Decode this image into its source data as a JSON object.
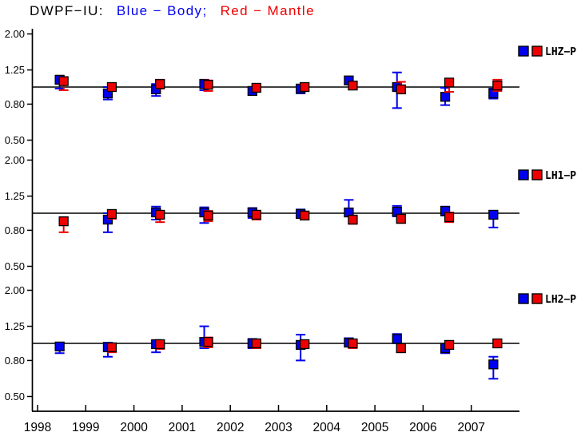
{
  "title": {
    "station": "DWPF−IU:",
    "blue_label": "Blue − Body;",
    "red_label": "Red − Mantle"
  },
  "colors": {
    "blue": "#0000ee",
    "red": "#ee0000",
    "axis": "#000000",
    "background": "#ffffff"
  },
  "x_axis": {
    "ticks": [
      "1998",
      "1999",
      "2000",
      "2001",
      "2002",
      "2003",
      "2004",
      "2005",
      "2006",
      "2007"
    ]
  },
  "chart_data": [
    {
      "type": "scatter",
      "legend": "LHZ−P",
      "yscale": "log",
      "ylim": [
        0.42,
        2.3
      ],
      "ref_line": 1.0,
      "grid": false,
      "legend_position": "right-top",
      "yticks": [
        {
          "v": 2.0,
          "label": "2.00"
        },
        {
          "v": 1.25,
          "label": "1.25"
        },
        {
          "v": 0.8,
          "label": "0.80"
        },
        {
          "v": 0.5,
          "label": "0.50"
        }
      ],
      "x": [
        1998.5,
        1999.5,
        2000.5,
        2001.5,
        2002.5,
        2003.5,
        2004.5,
        2005.5,
        2006.5,
        2007.5
      ],
      "series": [
        {
          "name": "Body",
          "color": "blue",
          "values": [
            1.1,
            0.92,
            0.97,
            1.04,
            0.95,
            0.98,
            1.09,
            1.0,
            0.88,
            0.92
          ],
          "err_lo": [
            0.98,
            0.85,
            0.89,
            0.96,
            0.91,
            0.92,
            1.04,
            0.76,
            0.79,
            0.86
          ],
          "err_hi": [
            1.12,
            1.0,
            1.04,
            1.1,
            0.99,
            1.03,
            1.14,
            1.21,
            0.99,
            0.98
          ]
        },
        {
          "name": "Mantle",
          "color": "red",
          "values": [
            1.08,
            1.0,
            1.04,
            1.03,
            0.99,
            1.0,
            1.02,
            0.97,
            1.06,
            1.02
          ],
          "err_lo": [
            0.96,
            0.95,
            0.98,
            0.95,
            0.95,
            0.95,
            0.97,
            0.93,
            0.94,
            0.95
          ],
          "err_hi": [
            1.11,
            1.05,
            1.1,
            1.09,
            1.03,
            1.05,
            1.06,
            1.07,
            1.11,
            1.1
          ]
        }
      ]
    },
    {
      "type": "scatter",
      "legend": "LH1−P",
      "yscale": "log",
      "ylim": [
        0.42,
        2.3
      ],
      "ref_line": 1.0,
      "grid": false,
      "legend_position": "right-top",
      "yticks": [
        {
          "v": 2.0,
          "label": "2.00"
        },
        {
          "v": 1.25,
          "label": "1.25"
        },
        {
          "v": 0.8,
          "label": "0.80"
        },
        {
          "v": 0.5,
          "label": "0.50"
        }
      ],
      "x": [
        1998.5,
        1999.5,
        2000.5,
        2001.5,
        2002.5,
        2003.5,
        2004.5,
        2005.5,
        2006.5,
        2007.5
      ],
      "series": [
        {
          "name": "Body",
          "color": "blue",
          "values": [
            null,
            0.92,
            1.01,
            1.01,
            1.01,
            0.99,
            1.01,
            1.02,
            1.03,
            0.98
          ],
          "err_lo": [
            null,
            0.78,
            0.92,
            0.88,
            0.94,
            0.94,
            0.96,
            0.96,
            0.97,
            0.83
          ],
          "err_hi": [
            null,
            1.0,
            1.09,
            1.08,
            1.07,
            1.05,
            1.19,
            1.1,
            1.09,
            1.03
          ]
        },
        {
          "name": "Mantle",
          "color": "red",
          "values": [
            0.9,
            0.99,
            0.98,
            0.97,
            0.98,
            0.97,
            0.92,
            0.93,
            0.95,
            null
          ],
          "err_lo": [
            0.78,
            0.93,
            0.89,
            0.9,
            0.92,
            0.92,
            0.87,
            0.88,
            0.89,
            null
          ],
          "err_hi": [
            0.95,
            1.04,
            1.03,
            1.03,
            1.03,
            1.02,
            0.97,
            0.98,
            1.01,
            null
          ]
        }
      ]
    },
    {
      "type": "scatter",
      "legend": "LH2−P",
      "yscale": "log",
      "ylim": [
        0.42,
        2.3
      ],
      "ref_line": 1.0,
      "grid": false,
      "legend_position": "right-top",
      "yticks": [
        {
          "v": 2.0,
          "label": "2.00"
        },
        {
          "v": 1.25,
          "label": "1.25"
        },
        {
          "v": 0.8,
          "label": "0.80"
        },
        {
          "v": 0.5,
          "label": "0.50"
        }
      ],
      "x": [
        1998.5,
        1999.5,
        2000.5,
        2001.5,
        2002.5,
        2003.5,
        2004.5,
        2005.5,
        2006.5,
        2007.5
      ],
      "series": [
        {
          "name": "Body",
          "color": "blue",
          "values": [
            0.96,
            0.95,
            0.99,
            1.02,
            1.0,
            0.98,
            1.01,
            1.06,
            0.94,
            0.76
          ],
          "err_lo": [
            0.88,
            0.84,
            0.89,
            0.94,
            0.94,
            0.8,
            0.96,
            1.0,
            0.88,
            0.63
          ],
          "err_hi": [
            1.01,
            1.01,
            1.04,
            1.25,
            1.06,
            1.12,
            1.07,
            1.13,
            0.99,
            0.84
          ]
        },
        {
          "name": "Mantle",
          "color": "red",
          "values": [
            null,
            0.95,
            0.99,
            1.02,
            1.0,
            0.99,
            1.0,
            0.94,
            0.98,
            1.0
          ],
          "err_lo": [
            null,
            0.89,
            0.93,
            0.95,
            0.94,
            0.95,
            0.94,
            0.89,
            0.93,
            0.95
          ],
          "err_hi": [
            null,
            1.0,
            1.03,
            1.08,
            1.05,
            1.03,
            1.05,
            0.98,
            1.02,
            1.05
          ]
        }
      ]
    }
  ]
}
